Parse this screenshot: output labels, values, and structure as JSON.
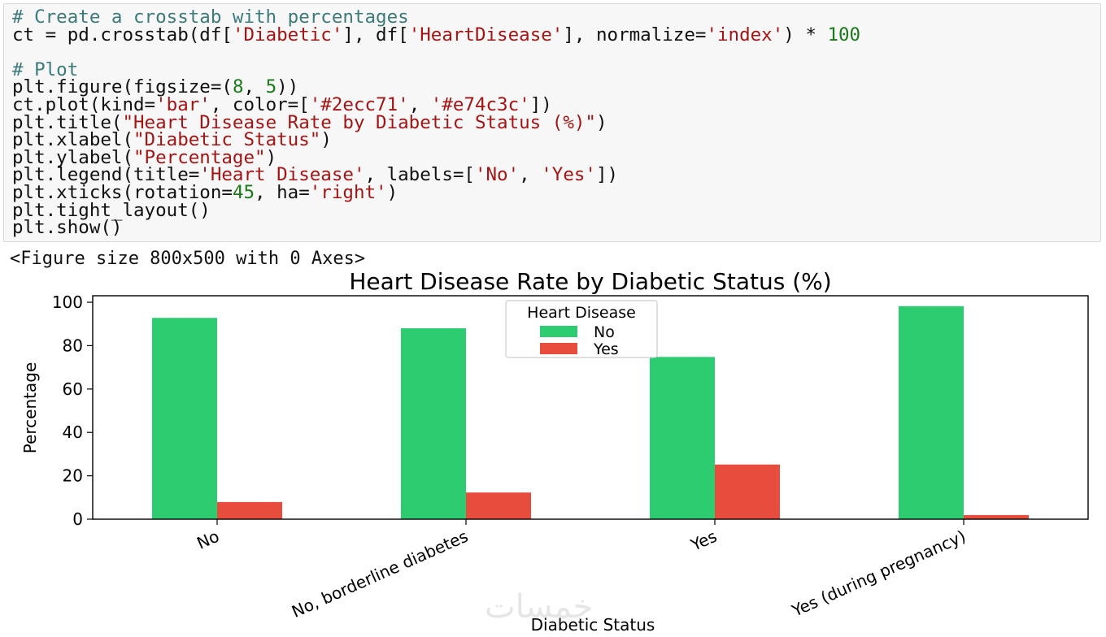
{
  "code_cell": {
    "lines": [
      [
        {
          "t": "# Create a crosstab with percentages",
          "c": "comment"
        }
      ],
      [
        {
          "t": "ct = pd.crosstab(df["
        },
        {
          "t": "'Diabetic'",
          "c": "string"
        },
        {
          "t": "], df["
        },
        {
          "t": "'HeartDisease'",
          "c": "string"
        },
        {
          "t": "], normalize="
        },
        {
          "t": "'index'",
          "c": "string"
        },
        {
          "t": ") * "
        },
        {
          "t": "100",
          "c": "number"
        }
      ],
      [],
      [
        {
          "t": "# Plot",
          "c": "comment"
        }
      ],
      [
        {
          "t": "plt.figure(figsize=("
        },
        {
          "t": "8",
          "c": "number"
        },
        {
          "t": ", "
        },
        {
          "t": "5",
          "c": "number"
        },
        {
          "t": "))"
        }
      ],
      [
        {
          "t": "ct.plot(kind="
        },
        {
          "t": "'bar'",
          "c": "string"
        },
        {
          "t": ", color=["
        },
        {
          "t": "'#2ecc71'",
          "c": "string"
        },
        {
          "t": ", "
        },
        {
          "t": "'#e74c3c'",
          "c": "string"
        },
        {
          "t": "])"
        }
      ],
      [
        {
          "t": "plt.title("
        },
        {
          "t": "\"Heart Disease Rate by Diabetic Status (%)\"",
          "c": "string"
        },
        {
          "t": ")"
        }
      ],
      [
        {
          "t": "plt.xlabel("
        },
        {
          "t": "\"Diabetic Status\"",
          "c": "string"
        },
        {
          "t": ")"
        }
      ],
      [
        {
          "t": "plt.ylabel("
        },
        {
          "t": "\"Percentage\"",
          "c": "string"
        },
        {
          "t": ")"
        }
      ],
      [
        {
          "t": "plt.legend(title="
        },
        {
          "t": "'Heart Disease'",
          "c": "string"
        },
        {
          "t": ", labels=["
        },
        {
          "t": "'No'",
          "c": "string"
        },
        {
          "t": ", "
        },
        {
          "t": "'Yes'",
          "c": "string"
        },
        {
          "t": "])"
        }
      ],
      [
        {
          "t": "plt.xticks(rotation="
        },
        {
          "t": "45",
          "c": "number"
        },
        {
          "t": ", ha="
        },
        {
          "t": "'right'",
          "c": "string"
        },
        {
          "t": ")"
        }
      ],
      [
        {
          "t": "plt.tight_layout()"
        }
      ],
      [
        {
          "t": "plt.show()"
        }
      ]
    ]
  },
  "output_text": "<Figure size 800x500 with 0 Axes>",
  "watermark": "خمسات",
  "chart_data": {
    "type": "bar",
    "title": "Heart Disease Rate by Diabetic Status (%)",
    "xlabel": "Diabetic Status",
    "ylabel": "Percentage",
    "categories": [
      "No",
      "No, borderline diabetes",
      "Yes",
      "Yes (during pregnancy)"
    ],
    "series": [
      {
        "name": "No",
        "color": "#2ecc71",
        "values": [
          92.8,
          88.0,
          74.8,
          98.2
        ]
      },
      {
        "name": "Yes",
        "color": "#e74c3c",
        "values": [
          7.9,
          12.3,
          25.2,
          1.9
        ]
      }
    ],
    "ylim": [
      0,
      103
    ],
    "yticks": [
      0,
      20,
      40,
      60,
      80,
      100
    ],
    "legend": {
      "title": "Heart Disease",
      "placement": "upper-center"
    },
    "grid": false
  }
}
